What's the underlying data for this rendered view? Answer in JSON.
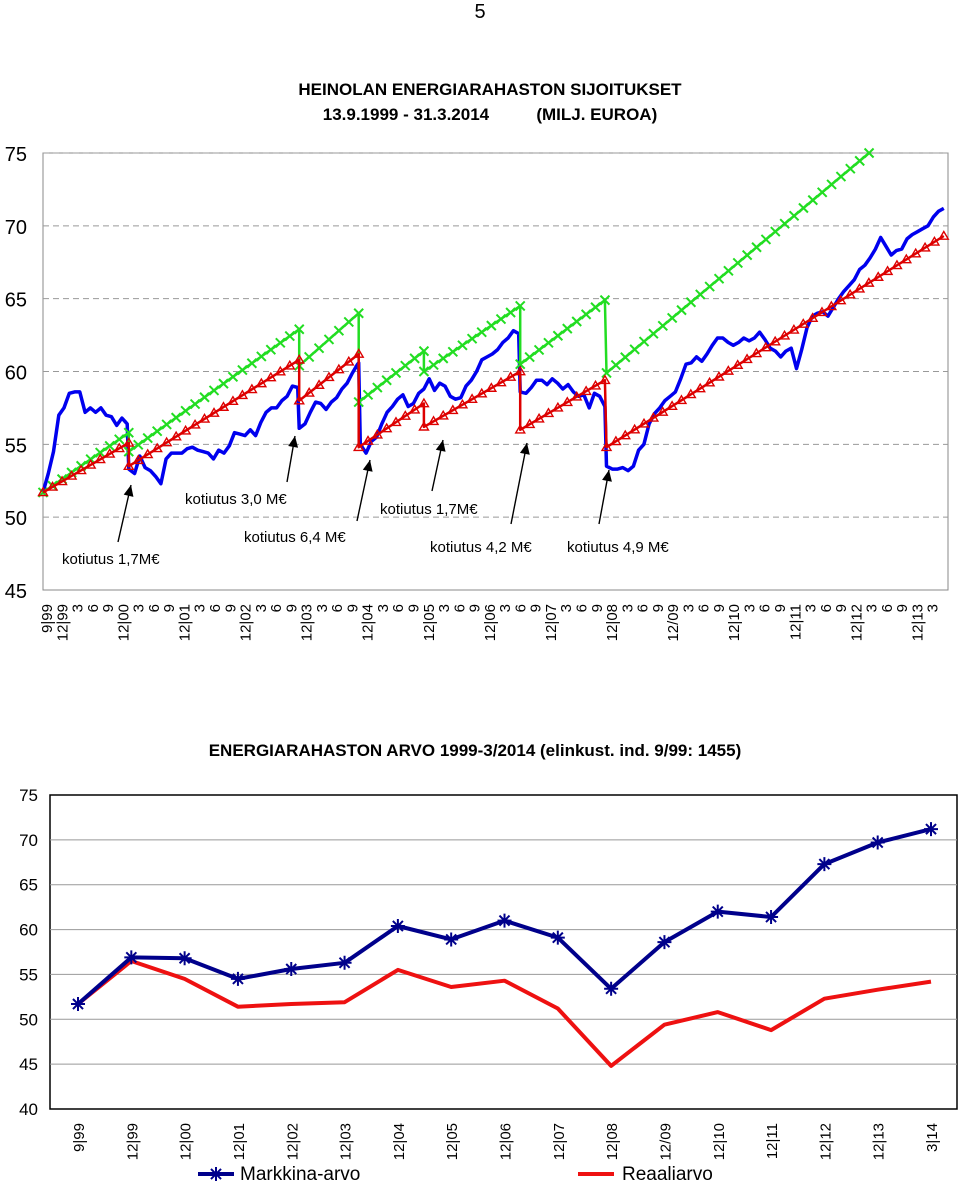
{
  "page_number": "5",
  "chart_data": [
    {
      "type": "line",
      "title": "HEINOLAN ENERGIARAHASTON SIJOITUKSET",
      "subtitle": "13.9.1999 - 31.3.2014          (MILJ. EUROA)",
      "ylim": [
        45,
        75
      ],
      "y_ticks": [
        "45",
        "50",
        "55",
        "60",
        "65",
        "70",
        "75"
      ],
      "grid": "dashed horizontal",
      "x_ticks": [
        "9|99",
        "12|99",
        "3",
        "6",
        "9",
        "12|00",
        "3",
        "6",
        "9",
        "12|01",
        "3",
        "6",
        "9",
        "12|02",
        "3",
        "6",
        "9",
        "12|03",
        "3",
        "6",
        "9",
        "12|04",
        "3",
        "6",
        "9",
        "12|05",
        "3",
        "6",
        "9",
        "12|06",
        "3",
        "6",
        "9",
        "12|07",
        "3",
        "6",
        "9",
        "12|08",
        "3",
        "6",
        "9",
        "12/09",
        "3",
        "6",
        "9",
        "12|10",
        "3",
        "6",
        "9",
        "12|11",
        "3",
        "6",
        "9",
        "12|12",
        "3",
        "6",
        "9",
        "12|13",
        "3"
      ],
      "series": [
        {
          "color": "#0000ee",
          "marker": "none",
          "points": [
            [
              0,
              51.7
            ],
            [
              0.5,
              53.0
            ],
            [
              1,
              54.5
            ],
            [
              1.5,
              57.0
            ],
            [
              2,
              57.5
            ],
            [
              2.5,
              58.5
            ],
            [
              3,
              58.6
            ],
            [
              3.5,
              58.6
            ],
            [
              4,
              57.2
            ],
            [
              4.5,
              57.5
            ],
            [
              5,
              57.2
            ],
            [
              5.5,
              57.5
            ],
            [
              6,
              57.0
            ],
            [
              6.5,
              56.9
            ],
            [
              7,
              56.3
            ],
            [
              7.5,
              56.8
            ],
            [
              8,
              56.4
            ],
            [
              8.15,
              53.3
            ],
            [
              8.7,
              53.0
            ],
            [
              9.2,
              54.2
            ],
            [
              9.7,
              53.4
            ],
            [
              10.2,
              53.2
            ],
            [
              10.7,
              52.8
            ],
            [
              11.2,
              52.3
            ],
            [
              11.7,
              54.0
            ],
            [
              12.2,
              54.4
            ],
            [
              12.7,
              54.4
            ],
            [
              13.2,
              54.4
            ],
            [
              13.7,
              54.7
            ],
            [
              14.2,
              54.8
            ],
            [
              14.7,
              54.6
            ],
            [
              15.2,
              54.5
            ],
            [
              15.7,
              54.4
            ],
            [
              16.2,
              54.0
            ],
            [
              16.7,
              54.6
            ],
            [
              17.2,
              54.4
            ],
            [
              17.7,
              54.9
            ],
            [
              18.2,
              55.8
            ],
            [
              18.7,
              55.7
            ],
            [
              19.2,
              55.6
            ],
            [
              19.7,
              56.0
            ],
            [
              20.2,
              55.6
            ],
            [
              20.7,
              56.5
            ],
            [
              21.2,
              57.2
            ],
            [
              21.7,
              57.5
            ],
            [
              22.2,
              57.5
            ],
            [
              22.7,
              58.0
            ],
            [
              23.2,
              58.3
            ],
            [
              23.7,
              59.0
            ],
            [
              24.2,
              58.9
            ],
            [
              24.35,
              56.1
            ],
            [
              24.9,
              56.4
            ],
            [
              25.4,
              57.2
            ],
            [
              25.9,
              57.9
            ],
            [
              26.4,
              57.8
            ],
            [
              26.9,
              57.4
            ],
            [
              27.4,
              57.9
            ],
            [
              27.9,
              58.2
            ],
            [
              28.4,
              58.8
            ],
            [
              28.9,
              59.2
            ],
            [
              29.4,
              59.9
            ],
            [
              29.9,
              60.5
            ],
            [
              30.0,
              60.6
            ],
            [
              30.15,
              55.0
            ],
            [
              30.7,
              54.4
            ],
            [
              31.2,
              55.2
            ],
            [
              31.7,
              55.5
            ],
            [
              32.2,
              56.4
            ],
            [
              32.7,
              57.2
            ],
            [
              33.2,
              57.6
            ],
            [
              33.7,
              58.1
            ],
            [
              34.2,
              58.4
            ],
            [
              34.7,
              57.6
            ],
            [
              35.2,
              57.8
            ],
            [
              35.7,
              58.5
            ],
            [
              36.2,
              58.8
            ],
            [
              36.7,
              59.5
            ],
            [
              37.2,
              58.7
            ],
            [
              37.7,
              59.2
            ],
            [
              38.2,
              59.0
            ],
            [
              38.7,
              58.3
            ],
            [
              39.2,
              58.1
            ],
            [
              39.7,
              58.2
            ],
            [
              40.2,
              59.0
            ],
            [
              40.7,
              59.4
            ],
            [
              41.2,
              60.0
            ],
            [
              41.7,
              60.8
            ],
            [
              42.2,
              61.0
            ],
            [
              42.7,
              61.2
            ],
            [
              43.2,
              61.5
            ],
            [
              43.7,
              62.0
            ],
            [
              44.2,
              62.3
            ],
            [
              44.7,
              62.8
            ],
            [
              45.2,
              62.6
            ],
            [
              45.35,
              58.6
            ],
            [
              45.9,
              58.5
            ],
            [
              46.4,
              58.9
            ],
            [
              46.9,
              59.4
            ],
            [
              47.4,
              59.4
            ],
            [
              47.9,
              59.1
            ],
            [
              48.4,
              59.5
            ],
            [
              48.9,
              59.2
            ],
            [
              49.4,
              58.8
            ],
            [
              49.9,
              59.1
            ],
            [
              50.4,
              58.6
            ],
            [
              50.9,
              58.3
            ],
            [
              51.4,
              58.4
            ],
            [
              51.9,
              57.5
            ],
            [
              52.4,
              58.5
            ],
            [
              52.9,
              58.3
            ],
            [
              53.4,
              57.6
            ],
            [
              53.55,
              53.5
            ],
            [
              54.1,
              53.3
            ],
            [
              54.6,
              53.3
            ],
            [
              55.1,
              53.4
            ],
            [
              55.6,
              53.2
            ],
            [
              56.1,
              53.5
            ],
            [
              56.6,
              54.6
            ],
            [
              57.1,
              55.0
            ],
            [
              57.6,
              56.4
            ],
            [
              58.1,
              57.1
            ],
            [
              58.6,
              57.5
            ],
            [
              59.1,
              58.0
            ],
            [
              59.6,
              58.3
            ],
            [
              60.1,
              58.6
            ],
            [
              60.6,
              59.5
            ],
            [
              61.1,
              60.5
            ],
            [
              61.6,
              60.6
            ],
            [
              62.1,
              61.0
            ],
            [
              62.6,
              60.7
            ],
            [
              63.1,
              61.2
            ],
            [
              63.6,
              61.8
            ],
            [
              64.1,
              62.3
            ],
            [
              64.6,
              62.3
            ],
            [
              65.1,
              62.0
            ],
            [
              65.6,
              61.8
            ],
            [
              66.1,
              62.0
            ],
            [
              66.6,
              62.3
            ],
            [
              67.1,
              62.1
            ],
            [
              67.6,
              62.3
            ],
            [
              68.1,
              62.7
            ],
            [
              68.6,
              62.2
            ],
            [
              69.1,
              61.6
            ],
            [
              69.6,
              61.4
            ],
            [
              70.1,
              61.0
            ],
            [
              70.6,
              61.4
            ],
            [
              71.1,
              61.6
            ],
            [
              71.6,
              60.2
            ],
            [
              72.1,
              61.5
            ],
            [
              72.6,
              63.0
            ],
            [
              73.1,
              63.8
            ],
            [
              73.6,
              64.0
            ],
            [
              74.1,
              64.1
            ],
            [
              74.6,
              63.8
            ],
            [
              75.1,
              64.4
            ],
            [
              75.6,
              65.0
            ],
            [
              76.1,
              65.5
            ],
            [
              76.6,
              65.9
            ],
            [
              77.1,
              66.3
            ],
            [
              77.6,
              67.0
            ],
            [
              78.1,
              67.3
            ],
            [
              78.6,
              67.8
            ],
            [
              79.1,
              68.4
            ],
            [
              79.6,
              69.2
            ],
            [
              80.1,
              68.6
            ],
            [
              80.6,
              68.0
            ],
            [
              81.1,
              68.3
            ],
            [
              81.6,
              68.4
            ],
            [
              82.1,
              69.1
            ],
            [
              82.6,
              69.4
            ],
            [
              83.1,
              69.6
            ],
            [
              83.6,
              69.8
            ],
            [
              84.1,
              70.0
            ],
            [
              84.6,
              70.6
            ],
            [
              85.1,
              71.0
            ],
            [
              85.6,
              71.2
            ]
          ]
        },
        {
          "color": "#22dd22",
          "marker": "x",
          "points": [
            [
              0,
              51.7
            ],
            [
              8.15,
              55.8
            ],
            [
              8.15,
              54.5
            ],
            [
              24.35,
              62.9
            ],
            [
              24.35,
              60.4
            ],
            [
              30.0,
              64.0
            ],
            [
              30.0,
              57.9
            ],
            [
              36.2,
              61.4
            ],
            [
              36.2,
              60.0
            ],
            [
              45.35,
              64.5
            ],
            [
              45.35,
              60.5
            ],
            [
              53.4,
              64.9
            ],
            [
              53.55,
              59.9
            ],
            [
              78.5,
              75.0
            ]
          ]
        },
        {
          "color": "#dd0000",
          "marker": "triangle",
          "points": [
            [
              0,
              51.7
            ],
            [
              8.15,
              55.1
            ],
            [
              8.15,
              53.5
            ],
            [
              24.35,
              60.8
            ],
            [
              24.35,
              58.0
            ],
            [
              30.0,
              61.2
            ],
            [
              30.0,
              54.8
            ],
            [
              36.2,
              57.8
            ],
            [
              36.2,
              56.2
            ],
            [
              45.35,
              60.0
            ],
            [
              45.35,
              56.0
            ],
            [
              53.4,
              59.4
            ],
            [
              53.55,
              54.8
            ],
            [
              85.6,
              69.3
            ]
          ]
        }
      ],
      "annotations": [
        {
          "text": "kotiutus 1,7M€"
        },
        {
          "text": "kotiutus 3,0 M€"
        },
        {
          "text": "kotiutus 6,4 M€"
        },
        {
          "text": "kotiutus 1,7M€"
        },
        {
          "text": "kotiutus 4,2 M€"
        },
        {
          "text": "kotiutus 4,9 M€"
        }
      ]
    },
    {
      "type": "line",
      "title": "ENERGIARAHASTON ARVO 1999-3/2014  (elinkust. ind. 9/99: 1455)",
      "categories": [
        "9|99",
        "12|99",
        "12|00",
        "12|01",
        "12|02",
        "12|03",
        "12|04",
        "12|05",
        "12|06",
        "12|07",
        "12|08",
        "12/09",
        "12|10",
        "12|11",
        "12|12",
        "12|13",
        "3|14"
      ],
      "ylim": [
        40,
        75
      ],
      "y_ticks": [
        "40",
        "45",
        "50",
        "55",
        "60",
        "65",
        "70",
        "75"
      ],
      "grid": "solid horizontal",
      "legend_position": "bottom",
      "series": [
        {
          "name": "Markkina-arvo",
          "color": "#00008b",
          "marker": "asterisk",
          "values": [
            51.7,
            56.9,
            56.8,
            54.5,
            55.6,
            56.3,
            60.4,
            58.9,
            61.0,
            59.1,
            53.4,
            58.6,
            62.0,
            61.4,
            67.3,
            69.7,
            71.2
          ]
        },
        {
          "name": "Reaaliarvo",
          "color": "#ee1111",
          "marker": "none",
          "values": [
            51.7,
            56.5,
            54.5,
            51.4,
            51.7,
            51.9,
            55.5,
            53.6,
            54.3,
            51.2,
            44.8,
            49.4,
            50.8,
            48.8,
            52.3,
            53.3,
            54.2
          ]
        }
      ]
    }
  ]
}
